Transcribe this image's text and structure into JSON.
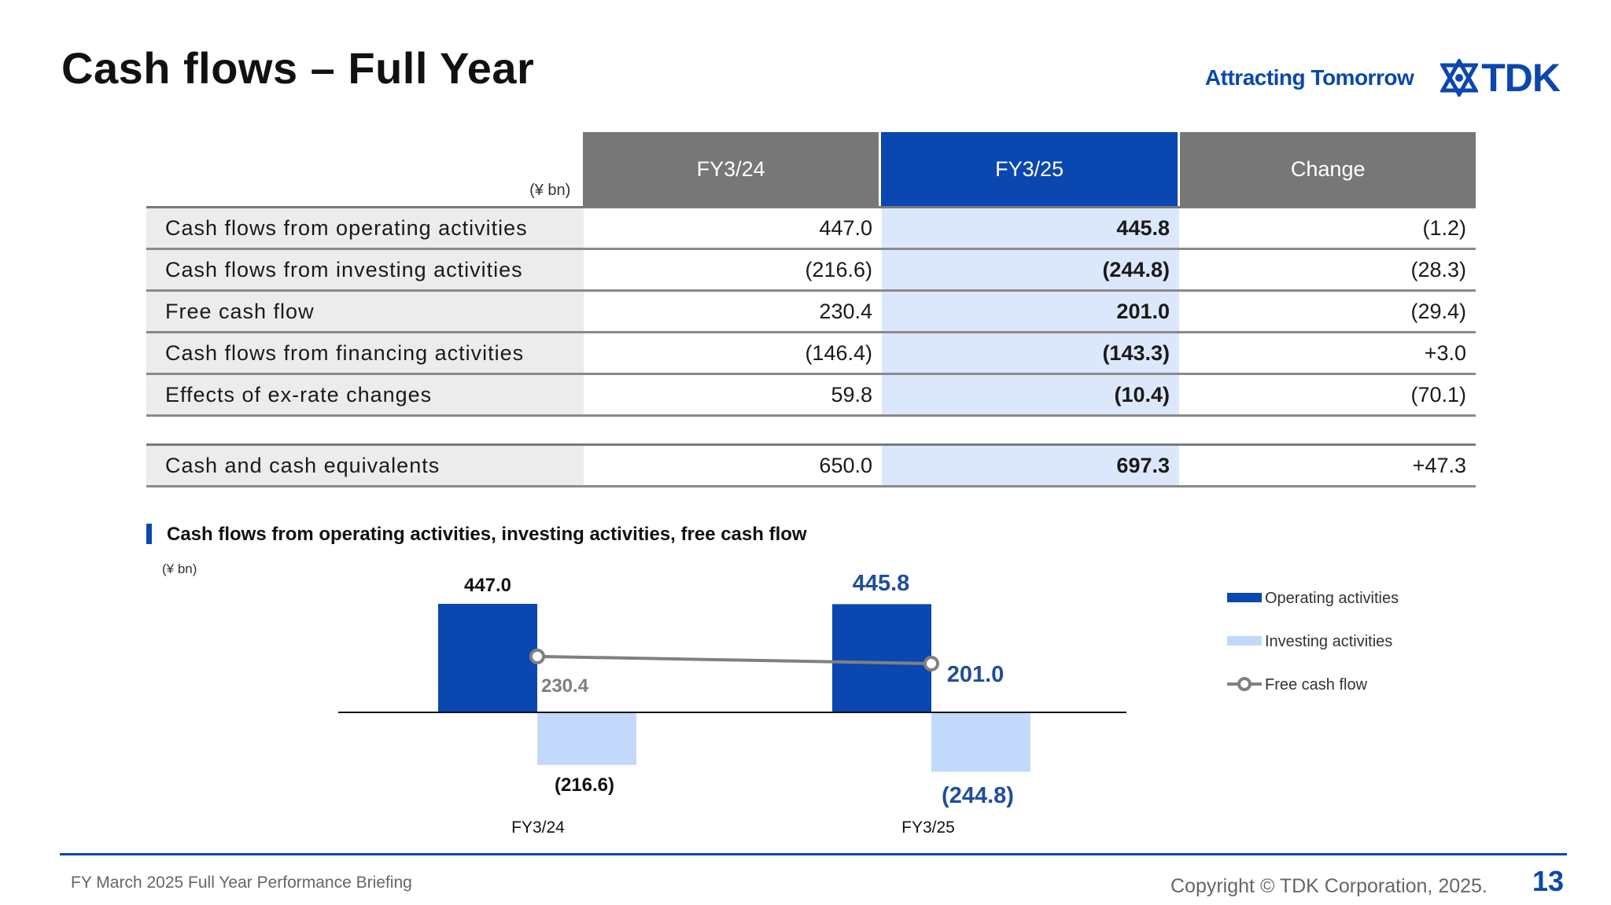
{
  "title": "Cash flows – Full Year",
  "brand": {
    "tagline": "Attracting Tomorrow",
    "logo_text": "TDK"
  },
  "table": {
    "unit": "(¥ bn)",
    "columns": [
      "FY3/24",
      "FY3/25",
      "Change"
    ],
    "rows": [
      {
        "label": "Cash flows from operating activities",
        "values": [
          "447.0",
          "445.8",
          "(1.2)"
        ]
      },
      {
        "label": "Cash flows from investing activities",
        "values": [
          "(216.6)",
          "(244.8)",
          "(28.3)"
        ]
      },
      {
        "label": "Free cash flow",
        "values": [
          "230.4",
          "201.0",
          "(29.4)"
        ]
      },
      {
        "label": "Cash flows from financing activities",
        "values": [
          "(146.4)",
          "(143.3)",
          "+3.0"
        ]
      },
      {
        "label": "Effects of ex-rate changes",
        "values": [
          "59.8",
          "(10.4)",
          "(70.1)"
        ]
      }
    ],
    "total_row": {
      "label": "Cash and cash equivalents",
      "values": [
        "650.0",
        "697.3",
        "+47.3"
      ]
    }
  },
  "chart_section": {
    "title": "Cash flows from operating activities, investing activities, free cash flow"
  },
  "chart_data": {
    "type": "bar",
    "unit": "(¥ bn)",
    "categories": [
      "FY3/24",
      "FY3/25"
    ],
    "series": [
      {
        "name": "Operating activities",
        "values": [
          447.0,
          445.8
        ],
        "labels": [
          "447.0",
          "445.8"
        ],
        "color": "#0a47b0"
      },
      {
        "name": "Investing activities",
        "values": [
          -216.6,
          -244.8
        ],
        "labels": [
          "(216.6)",
          "(244.8)"
        ],
        "color": "#c3d9fb"
      },
      {
        "name": "Free cash flow",
        "type": "line",
        "values": [
          230.4,
          201.0
        ],
        "labels": [
          "230.4",
          "201.0"
        ],
        "color": "#808080"
      }
    ],
    "legend_position": "right"
  },
  "footer": {
    "left": "FY March 2025 Full Year Performance Briefing",
    "copyright": "Copyright  © TDK Corporation, 2025.",
    "page": "13"
  }
}
